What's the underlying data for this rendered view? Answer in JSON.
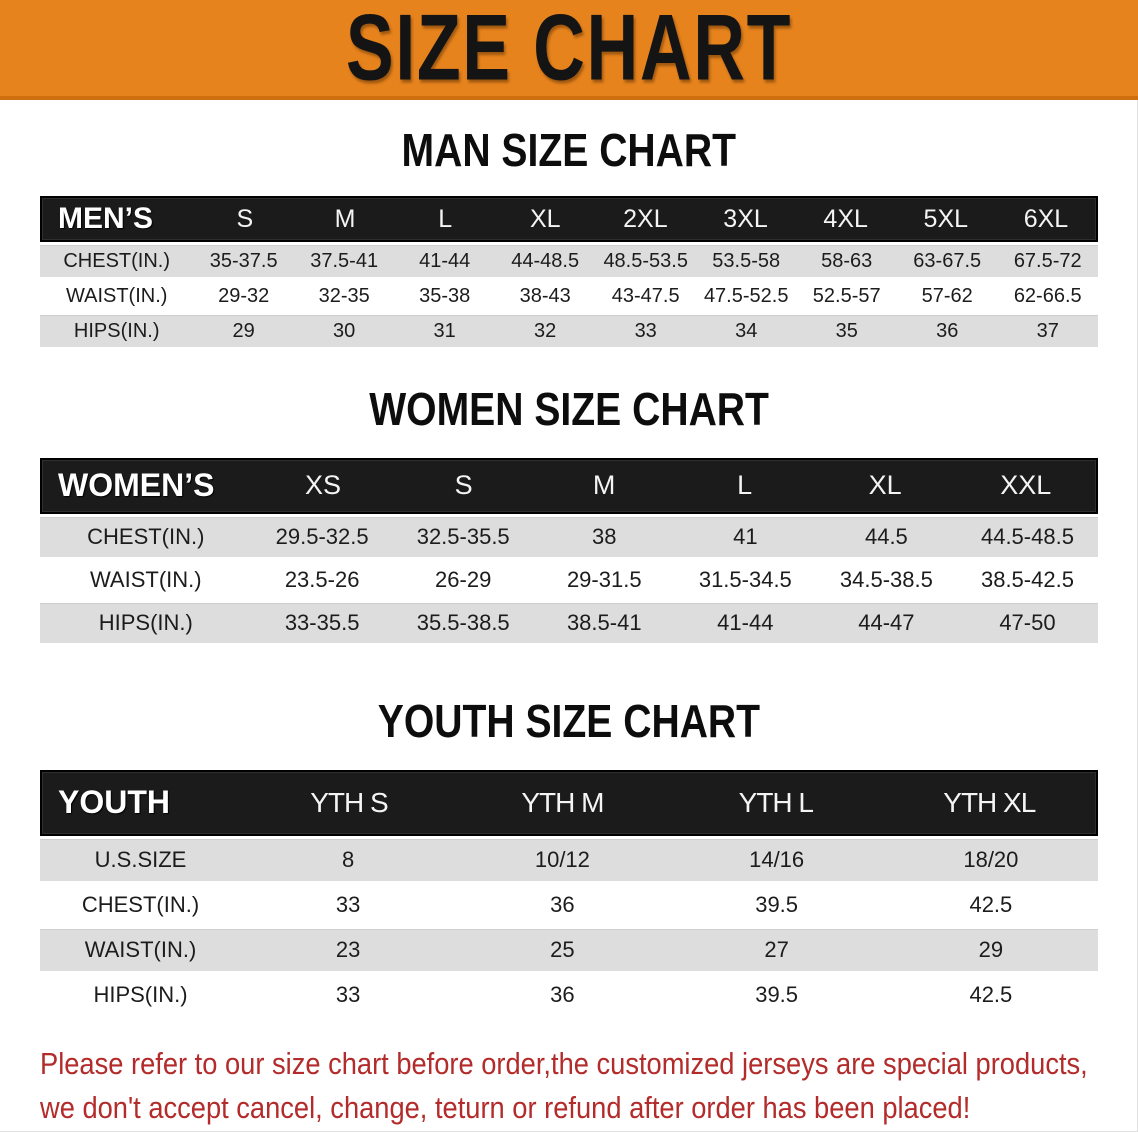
{
  "banner": {
    "title": "SIZE CHART",
    "bg_color": "#E6831D",
    "text_color": "#141414"
  },
  "charts": [
    {
      "title": "MAN SIZE CHART",
      "header_label": "MEN’S",
      "columns": [
        "S",
        "M",
        "L",
        "XL",
        "2XL",
        "3XL",
        "4XL",
        "5XL",
        "6XL"
      ],
      "rows": [
        {
          "label": "CHEST(IN.)",
          "values": [
            "35-37.5",
            "37.5-41",
            "41-44",
            "44-48.5",
            "48.5-53.5",
            "53.5-58",
            "58-63",
            "63-67.5",
            "67.5-72"
          ]
        },
        {
          "label": "WAIST(IN.)",
          "values": [
            "29-32",
            "32-35",
            "35-38",
            "38-43",
            "43-47.5",
            "47.5-52.5",
            "52.5-57",
            "57-62",
            "62-66.5"
          ]
        },
        {
          "label": "HIPS(IN.)",
          "values": [
            "29",
            "30",
            "31",
            "32",
            "33",
            "34",
            "35",
            "36",
            "37"
          ]
        }
      ]
    },
    {
      "title": "WOMEN SIZE CHART",
      "header_label": "WOMEN’S",
      "columns": [
        "XS",
        "S",
        "M",
        "L",
        "XL",
        "XXL"
      ],
      "rows": [
        {
          "label": "CHEST(IN.)",
          "values": [
            "29.5-32.5",
            "32.5-35.5",
            "38",
            "41",
            "44.5",
            "44.5-48.5"
          ]
        },
        {
          "label": "WAIST(IN.)",
          "values": [
            "23.5-26",
            "26-29",
            "29-31.5",
            "31.5-34.5",
            "34.5-38.5",
            "38.5-42.5"
          ]
        },
        {
          "label": "HIPS(IN.)",
          "values": [
            "33-35.5",
            "35.5-38.5",
            "38.5-41",
            "41-44",
            "44-47",
            "47-50"
          ]
        }
      ]
    },
    {
      "title": "YOUTH SIZE CHART",
      "header_label": "YOUTH",
      "columns": [
        "YTH S",
        "YTH M",
        "YTH L",
        "YTH XL"
      ],
      "rows": [
        {
          "label": "U.S.SIZE",
          "values": [
            "8",
            "10/12",
            "14/16",
            "18/20"
          ]
        },
        {
          "label": "CHEST(IN.)",
          "values": [
            "33",
            "36",
            "39.5",
            "42.5"
          ]
        },
        {
          "label": "WAIST(IN.)",
          "values": [
            "23",
            "25",
            "27",
            "29"
          ]
        },
        {
          "label": "HIPS(IN.)",
          "values": [
            "33",
            "36",
            "39.5",
            "42.5"
          ]
        }
      ]
    }
  ],
  "table_colors": {
    "header_bg": "#1b1b1b",
    "header_text": "#ffffff",
    "stripe_gray": "#DDDDDD",
    "stripe_white": "#FFFFFF"
  },
  "disclaimer": {
    "line1": "Please refer to our size chart before order,the customized jerseys are special products,",
    "line2": "we don't accept cancel, change, teturn or refund after order has been placed!",
    "color": "#B32B2B"
  }
}
